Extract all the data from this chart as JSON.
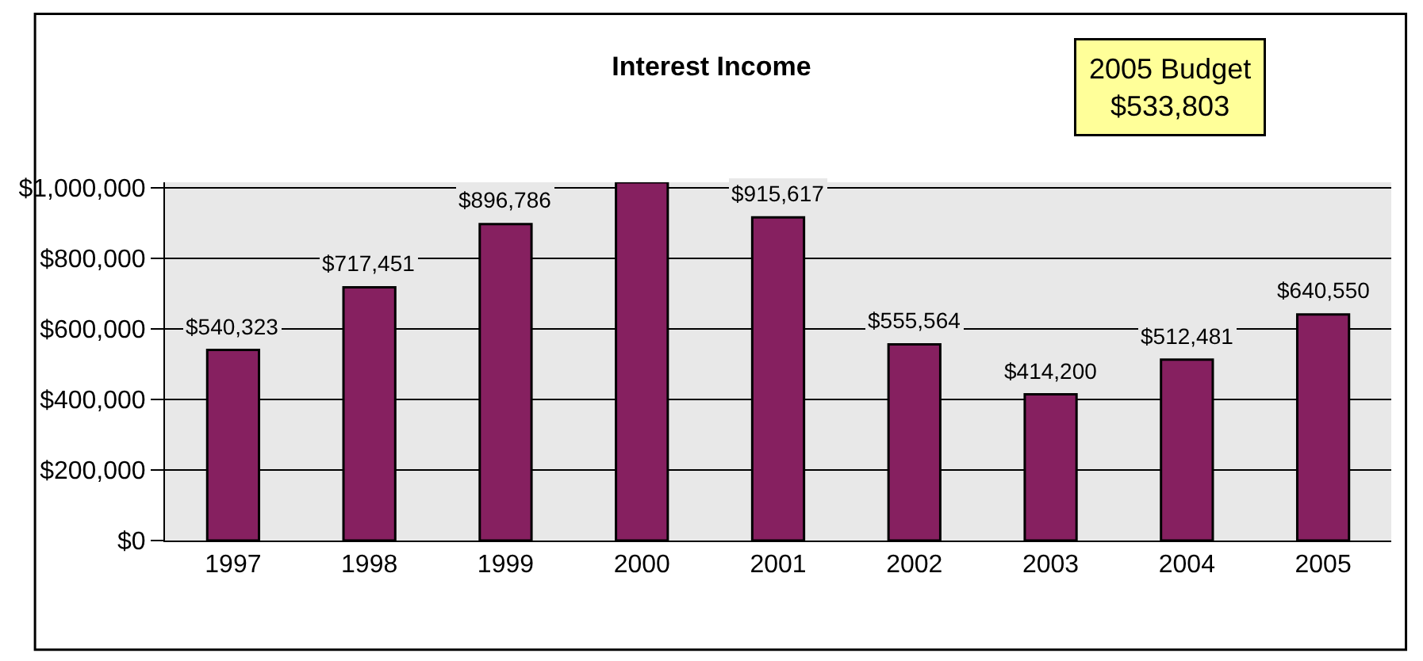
{
  "chart_data": {
    "type": "bar",
    "title": "Interest Income",
    "categories": [
      "1997",
      "1998",
      "1999",
      "2000",
      "2001",
      "2002",
      "2003",
      "2004",
      "2005"
    ],
    "values": [
      540323,
      717451,
      896786,
      1015000,
      915617,
      555564,
      414200,
      512481,
      640550
    ],
    "value_labels": [
      "$540,323",
      "$717,451",
      "$896,786",
      null,
      "$915,617",
      "$555,564",
      "$414,200",
      "$512,481",
      "$640,550"
    ],
    "color": "#862060",
    "ylim": [
      0,
      1015000
    ],
    "yticks": [
      {
        "value": 0,
        "label": "$0"
      },
      {
        "value": 200000,
        "label": "$200,000"
      },
      {
        "value": 400000,
        "label": "$400,000"
      },
      {
        "value": 600000,
        "label": "$600,000"
      },
      {
        "value": 800000,
        "label": "$800,000"
      },
      {
        "value": 1000000,
        "label": "$1,000,000"
      }
    ],
    "grid": "y",
    "legend": false,
    "annotations": [
      "2005 Budget\n$533,803"
    ]
  }
}
